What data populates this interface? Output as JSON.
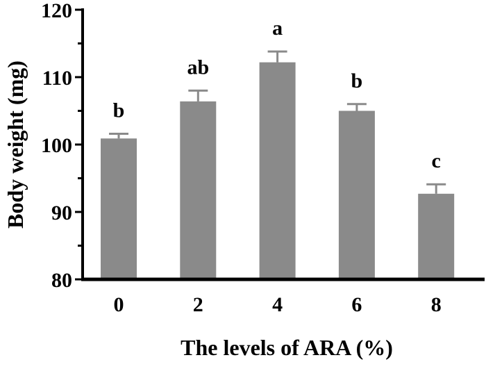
{
  "chart_data": {
    "type": "bar",
    "title": "",
    "xlabel": "The levels of ARA (%)",
    "ylabel": "Body weight (mg)",
    "categories": [
      "0",
      "2",
      "4",
      "6",
      "8"
    ],
    "values": [
      100.9,
      106.4,
      112.2,
      105.0,
      92.7
    ],
    "error_upper": [
      0.7,
      1.6,
      1.6,
      1.0,
      1.4
    ],
    "significance_letters": [
      "b",
      "ab",
      "a",
      "b",
      "c"
    ],
    "ylim": [
      80,
      120
    ],
    "yticks": [
      80,
      90,
      100,
      110,
      120
    ],
    "minor_yticks": [
      85,
      95,
      105,
      115
    ],
    "grid": false,
    "legend": null,
    "bar_color": "#8a8a8a",
    "axis_color": "#000000"
  }
}
